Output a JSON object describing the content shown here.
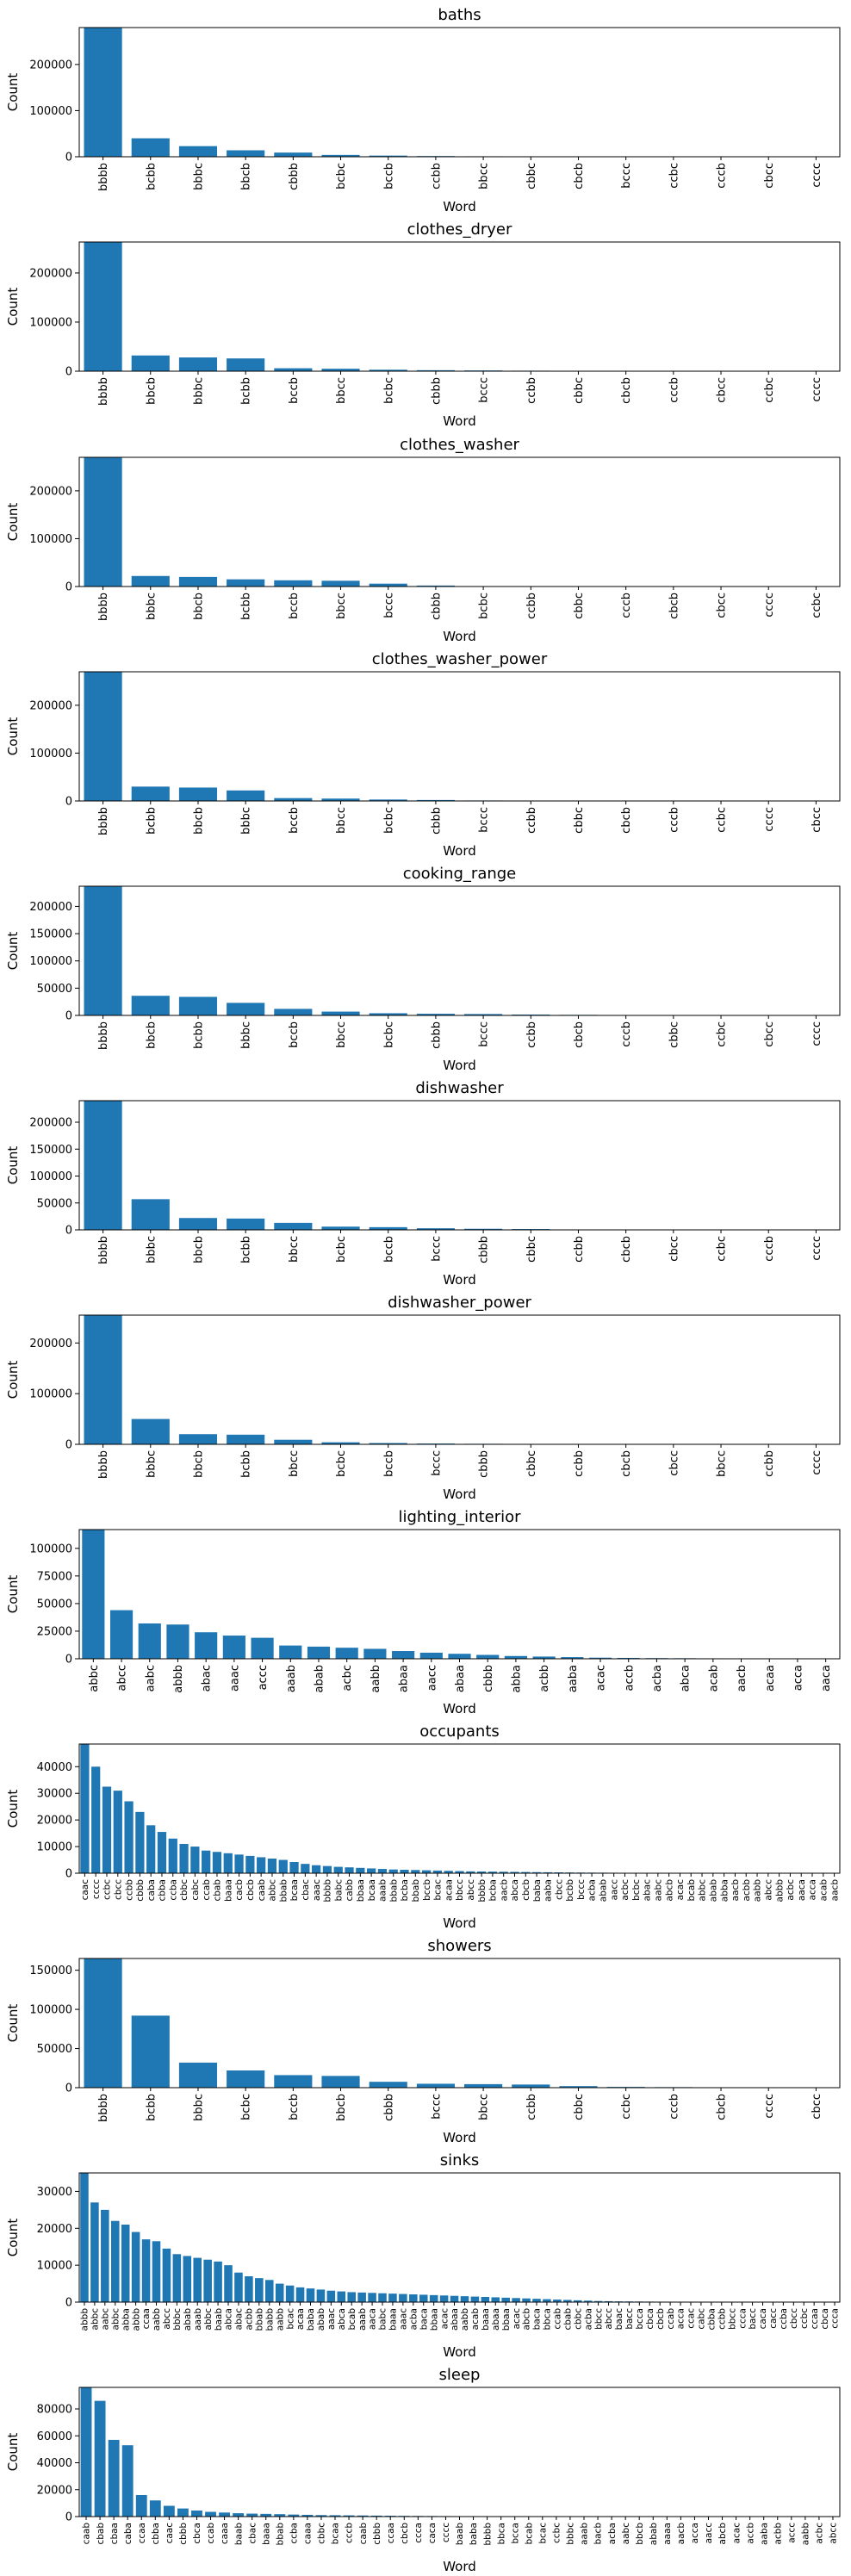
{
  "style": {
    "bar_color": "#1f77b4",
    "axis_color": "#000000"
  },
  "chart_data": [
    {
      "type": "bar",
      "title": "baths",
      "xlabel": "Word",
      "ylabel": "Count",
      "ylim": [
        0,
        280000
      ],
      "yticks": [
        0,
        100000,
        200000
      ],
      "categories": [
        "bbbb",
        "bcbb",
        "bbbc",
        "bbcb",
        "cbbb",
        "bcbc",
        "bccb",
        "ccbb",
        "bbcc",
        "cbbc",
        "cbcb",
        "bccc",
        "ccbc",
        "cccb",
        "cbcc",
        "cccc"
      ],
      "values": [
        280000,
        40000,
        23000,
        14000,
        9000,
        4000,
        2500,
        1500,
        1000,
        600,
        300,
        200,
        100,
        100,
        100,
        50
      ]
    },
    {
      "type": "bar",
      "title": "clothes_dryer",
      "xlabel": "Word",
      "ylabel": "Count",
      "ylim": [
        0,
        263000
      ],
      "yticks": [
        0,
        100000,
        200000
      ],
      "categories": [
        "bbbb",
        "bbcb",
        "bbbc",
        "bcbb",
        "bccb",
        "bbcc",
        "bcbc",
        "cbbb",
        "bccc",
        "ccbb",
        "cbbc",
        "cbcb",
        "cccb",
        "cbcc",
        "ccbc",
        "cccc"
      ],
      "values": [
        263000,
        32000,
        28000,
        26000,
        6000,
        5000,
        3000,
        2000,
        1500,
        1000,
        800,
        600,
        200,
        150,
        100,
        50
      ]
    },
    {
      "type": "bar",
      "title": "clothes_washer",
      "xlabel": "Word",
      "ylabel": "Count",
      "ylim": [
        0,
        270000
      ],
      "yticks": [
        0,
        100000,
        200000
      ],
      "categories": [
        "bbbb",
        "bbbc",
        "bbcb",
        "bcbb",
        "bccb",
        "bbcc",
        "bccc",
        "cbbb",
        "bcbc",
        "ccbb",
        "cbbc",
        "cccb",
        "cbcb",
        "cbcc",
        "cccc",
        "ccbc"
      ],
      "values": [
        270000,
        22000,
        20000,
        15000,
        13000,
        12000,
        6000,
        2000,
        800,
        500,
        400,
        300,
        200,
        150,
        100,
        50
      ]
    },
    {
      "type": "bar",
      "title": "clothes_washer_power",
      "xlabel": "Word",
      "ylabel": "Count",
      "ylim": [
        0,
        270000
      ],
      "yticks": [
        0,
        100000,
        200000
      ],
      "categories": [
        "bbbb",
        "bcbb",
        "bbcb",
        "bbbc",
        "bccb",
        "bbcc",
        "bcbc",
        "cbbb",
        "bccc",
        "ccbb",
        "cbbc",
        "cbcb",
        "cccb",
        "ccbc",
        "cccc",
        "cbcc"
      ],
      "values": [
        270000,
        30000,
        28000,
        22000,
        6000,
        5000,
        3000,
        2000,
        1000,
        600,
        400,
        300,
        200,
        150,
        100,
        50
      ]
    },
    {
      "type": "bar",
      "title": "cooking_range",
      "xlabel": "Word",
      "ylabel": "Count",
      "ylim": [
        0,
        237000
      ],
      "yticks": [
        0,
        50000,
        100000,
        150000,
        200000
      ],
      "categories": [
        "bbbb",
        "bbcb",
        "bcbb",
        "bbbc",
        "bccb",
        "bbcc",
        "bcbc",
        "cbbb",
        "bccc",
        "ccbb",
        "cbcb",
        "cccb",
        "cbbc",
        "ccbc",
        "cbcc",
        "cccc"
      ],
      "values": [
        237000,
        36000,
        34000,
        23000,
        12000,
        7000,
        4000,
        3000,
        2500,
        1500,
        1000,
        500,
        300,
        200,
        150,
        100
      ]
    },
    {
      "type": "bar",
      "title": "dishwasher",
      "xlabel": "Word",
      "ylabel": "Count",
      "ylim": [
        0,
        240000
      ],
      "yticks": [
        0,
        50000,
        100000,
        150000,
        200000
      ],
      "categories": [
        "bbbb",
        "bbbc",
        "bbcb",
        "bcbb",
        "bbcc",
        "bcbc",
        "bccb",
        "bccc",
        "cbbb",
        "cbbc",
        "ccbb",
        "cbcb",
        "cbcc",
        "ccbc",
        "cccb",
        "cccc"
      ],
      "values": [
        240000,
        57000,
        22000,
        21000,
        13000,
        6000,
        5000,
        3000,
        2000,
        1500,
        800,
        500,
        300,
        200,
        150,
        100
      ]
    },
    {
      "type": "bar",
      "title": "dishwasher_power",
      "xlabel": "Word",
      "ylabel": "Count",
      "ylim": [
        0,
        255000
      ],
      "yticks": [
        0,
        100000,
        200000
      ],
      "categories": [
        "bbbb",
        "bbbc",
        "bbcb",
        "bcbb",
        "bbcc",
        "bcbc",
        "bccb",
        "bccc",
        "cbbb",
        "cbbc",
        "ccbb",
        "cbcb",
        "cbcc",
        "bbcc",
        "ccbb",
        "cccc"
      ],
      "values": [
        255000,
        50000,
        20000,
        19000,
        9000,
        4000,
        2500,
        1500,
        1000,
        600,
        400,
        300,
        200,
        150,
        100,
        50
      ]
    },
    {
      "type": "bar",
      "title": "lighting_interior",
      "xlabel": "Word",
      "ylabel": "Count",
      "ylim": [
        0,
        117000
      ],
      "yticks": [
        0,
        25000,
        50000,
        75000,
        100000
      ],
      "categories": [
        "abbc",
        "abcc",
        "aabc",
        "abbb",
        "abac",
        "aaac",
        "accc",
        "aaab",
        "abab",
        "acbc",
        "aabb",
        "abaa",
        "aacc",
        "abaa",
        "cbbb",
        "abba",
        "acbb",
        "aaba",
        "acac",
        "accb",
        "acba",
        "abca",
        "acab",
        "aacb",
        "acaa",
        "acca",
        "aaca"
      ],
      "values": [
        117000,
        44000,
        32000,
        31000,
        24000,
        21000,
        19000,
        12000,
        11000,
        10000,
        9000,
        7000,
        5500,
        4500,
        3500,
        2500,
        2000,
        1500,
        1000,
        800,
        600,
        500,
        400,
        300,
        200,
        100,
        50
      ]
    },
    {
      "type": "bar",
      "title": "occupants",
      "xlabel": "Word",
      "ylabel": "Count",
      "ylim": [
        0,
        48500
      ],
      "yticks": [
        0,
        10000,
        20000,
        30000,
        40000
      ],
      "categories": [
        "caac",
        "cccc",
        "ccbc",
        "cbcc",
        "ccbb",
        "cbbb",
        "caba",
        "cbba",
        "ccba",
        "cbbc",
        "cabc",
        "ccab",
        "cbab",
        "baaa",
        "cacb",
        "cbcb",
        "caab",
        "abbc",
        "bbab",
        "bcaa",
        "cbac",
        "aaac",
        "bbbb",
        "babc",
        "cabb",
        "bbaa",
        "bcaa",
        "aaab",
        "bbab",
        "bcba",
        "bbab",
        "bccb",
        "bcac",
        "acaa",
        "bbcc",
        "abcc",
        "bbbb",
        "bcba",
        "aacb",
        "abca",
        "cbcb",
        "baba",
        "aaba",
        "cbcc",
        "bcbb",
        "bccc",
        "acba",
        "abab",
        "aacc",
        "acbc",
        "bcbc",
        "abac",
        "aabc",
        "abcb",
        "acac",
        "bcab",
        "abbc",
        "abab",
        "abba",
        "aacb",
        "acbb",
        "aabb",
        "abcc",
        "abbb",
        "acbc",
        "aaca",
        "acca",
        "acab",
        "aacb"
      ],
      "values": [
        48500,
        40000,
        32500,
        31000,
        27000,
        23000,
        18000,
        15500,
        13000,
        11000,
        10000,
        8500,
        8000,
        7500,
        7000,
        6500,
        6000,
        5500,
        5000,
        4200,
        3500,
        3000,
        2700,
        2400,
        2200,
        2000,
        1800,
        1600,
        1400,
        1300,
        1200,
        1100,
        1000,
        900,
        800,
        700,
        650,
        600,
        550,
        500,
        450,
        400,
        360,
        320,
        280,
        250,
        220,
        200,
        180,
        160,
        140,
        120,
        100,
        90,
        80,
        70,
        60,
        50,
        45,
        40,
        35,
        30,
        25,
        20,
        15,
        12,
        10,
        8,
        5
      ]
    },
    {
      "type": "bar",
      "title": "showers",
      "xlabel": "Word",
      "ylabel": "Count",
      "ylim": [
        0,
        165000
      ],
      "yticks": [
        0,
        50000,
        100000,
        150000
      ],
      "categories": [
        "bbbb",
        "bcbb",
        "bbbc",
        "bcbc",
        "bccb",
        "bbcb",
        "cbbb",
        "bccc",
        "bbcc",
        "ccbb",
        "cbbc",
        "ccbc",
        "cccb",
        "cbcb",
        "cccc",
        "cbcc"
      ],
      "values": [
        165000,
        92000,
        32000,
        22000,
        16000,
        15000,
        7500,
        5000,
        4500,
        4000,
        2000,
        1000,
        700,
        400,
        200,
        100
      ]
    },
    {
      "type": "bar",
      "title": "sinks",
      "xlabel": "Word",
      "ylabel": "Count",
      "ylim": [
        0,
        35000
      ],
      "yticks": [
        0,
        10000,
        20000,
        30000
      ],
      "categories": [
        "abbb",
        "abbc",
        "aabc",
        "abbc",
        "abba",
        "abbb",
        "ccaa",
        "aabb",
        "abcc",
        "bbbc",
        "abab",
        "aaab",
        "abbc",
        "baab",
        "abca",
        "abac",
        "acbb",
        "bbab",
        "babb",
        "aabb",
        "bcac",
        "acaa",
        "baba",
        "abab",
        "aaac",
        "abca",
        "bcab",
        "aaab",
        "aaca",
        "babc",
        "baaa",
        "aaac",
        "acba",
        "baca",
        "bbaa",
        "acac",
        "abaa",
        "aabb",
        "acab",
        "baaa",
        "abaa",
        "bbaa",
        "acac",
        "abcb",
        "baca",
        "bbca",
        "ccab",
        "cbab",
        "cbbc",
        "acba",
        "bbcc",
        "abcc",
        "baac",
        "bacc",
        "bcca",
        "cbca",
        "cbcb",
        "ccab",
        "acca",
        "ccac",
        "cabc",
        "cbba",
        "ccbb",
        "bbcc",
        "ccca",
        "bacc",
        "caca",
        "cacc",
        "ccba",
        "cbcc",
        "ccbc",
        "ccaa",
        "cbca",
        "ccca"
      ],
      "values": [
        35000,
        27000,
        25000,
        22000,
        21000,
        19000,
        17000,
        16500,
        14500,
        13000,
        12500,
        12000,
        11500,
        11000,
        10000,
        8000,
        7000,
        6500,
        6000,
        5000,
        4500,
        4000,
        3700,
        3400,
        3100,
        2900,
        2700,
        2600,
        2500,
        2400,
        2300,
        2200,
        2100,
        2000,
        1900,
        1800,
        1700,
        1600,
        1500,
        1400,
        1300,
        1200,
        1100,
        1000,
        900,
        800,
        700,
        600,
        500,
        400,
        300,
        250,
        200,
        180,
        160,
        140,
        120,
        100,
        90,
        80,
        70,
        60,
        50,
        45,
        40,
        35,
        30,
        25,
        20,
        15,
        12,
        10,
        8,
        5
      ]
    },
    {
      "type": "bar",
      "title": "sleep",
      "xlabel": "Word",
      "ylabel": "Count",
      "ylim": [
        0,
        96000
      ],
      "yticks": [
        0,
        20000,
        40000,
        60000,
        80000
      ],
      "categories": [
        "caab",
        "cbab",
        "cbaa",
        "caba",
        "ccaa",
        "cbba",
        "caac",
        "cbbb",
        "cbca",
        "ccab",
        "caaa",
        "baab",
        "cbac",
        "baaa",
        "bbab",
        "ccba",
        "caaa",
        "cbbc",
        "bcaa",
        "cccb",
        "caab",
        "cbbb",
        "ccaa",
        "cbcb",
        "ccca",
        "caca",
        "cccc",
        "baab",
        "baba",
        "bbbb",
        "bbca",
        "bcca",
        "bcab",
        "bcac",
        "ccbc",
        "bbbc",
        "aaab",
        "bacb",
        "acba",
        "aabc",
        "bbcb",
        "abab",
        "aaaa",
        "aacb",
        "acca",
        "aacc",
        "abcb",
        "acac",
        "accb",
        "aaba",
        "acbb",
        "accc",
        "aabb",
        "acbc",
        "abcc"
      ],
      "values": [
        96000,
        86000,
        57000,
        53000,
        16000,
        12000,
        8000,
        6000,
        4500,
        3500,
        3000,
        2500,
        2200,
        2000,
        1800,
        1500,
        1300,
        1100,
        1000,
        900,
        800,
        700,
        600,
        500,
        450,
        400,
        350,
        300,
        250,
        200,
        180,
        160,
        140,
        120,
        100,
        90,
        80,
        70,
        60,
        50,
        45,
        40,
        35,
        30,
        25,
        20,
        15,
        12,
        10,
        8,
        6,
        5,
        4,
        3,
        2
      ]
    }
  ]
}
